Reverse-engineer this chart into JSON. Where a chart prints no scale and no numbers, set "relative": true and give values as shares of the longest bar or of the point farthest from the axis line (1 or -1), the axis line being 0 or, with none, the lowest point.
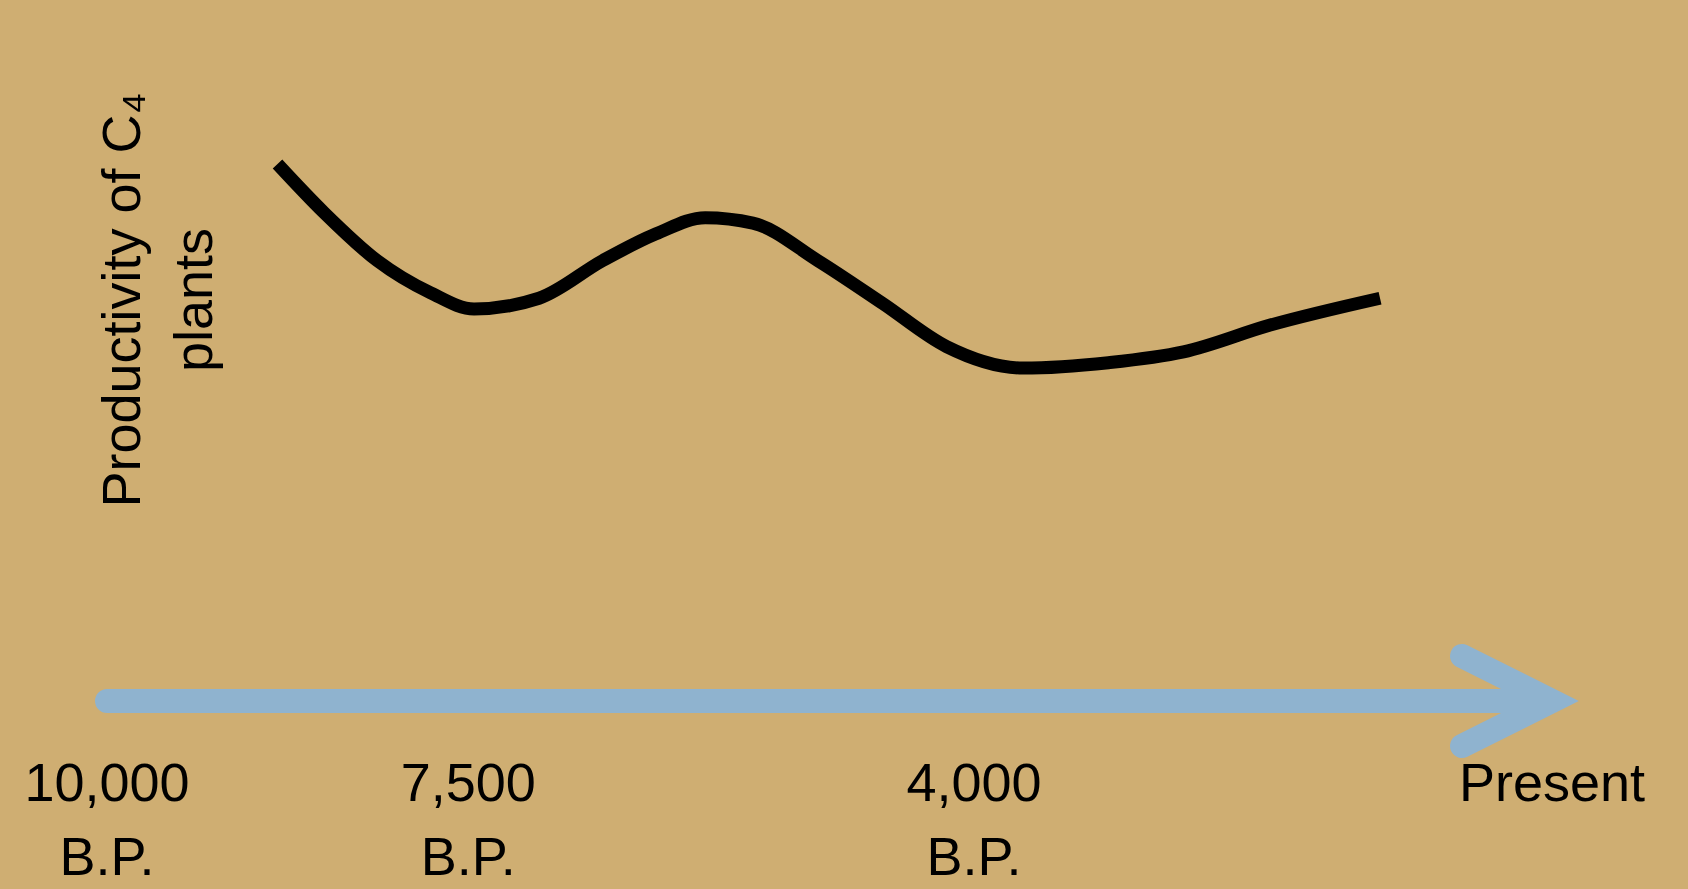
{
  "chart_data": {
    "type": "line",
    "relative": true,
    "ylabel": "Productivity of C₄ plants",
    "xlim": [
      10000,
      0
    ],
    "xticks": [
      {
        "value": 10000,
        "label": "10,000 B.P."
      },
      {
        "value": 7500,
        "label": "7,500 B.P."
      },
      {
        "value": 4000,
        "label": "4,000 B.P."
      },
      {
        "value": 0,
        "label": "Present"
      }
    ],
    "x": [
      8820,
      8500,
      8130,
      7760,
      7460,
      7010,
      6570,
      6200,
      5860,
      5530,
      5080,
      4630,
      4190,
      3660,
      3070,
      2550,
      1950,
      1190
    ],
    "series": [
      {
        "color": "#000000",
        "values": [
          1.0,
          0.91,
          0.82,
          0.76,
          0.73,
          0.75,
          0.82,
          0.87,
          0.9,
          0.89,
          0.82,
          0.74,
          0.66,
          0.62,
          0.63,
          0.65,
          0.7,
          0.75
        ]
      }
    ],
    "marker": "none",
    "line_style": "solid"
  }
}
